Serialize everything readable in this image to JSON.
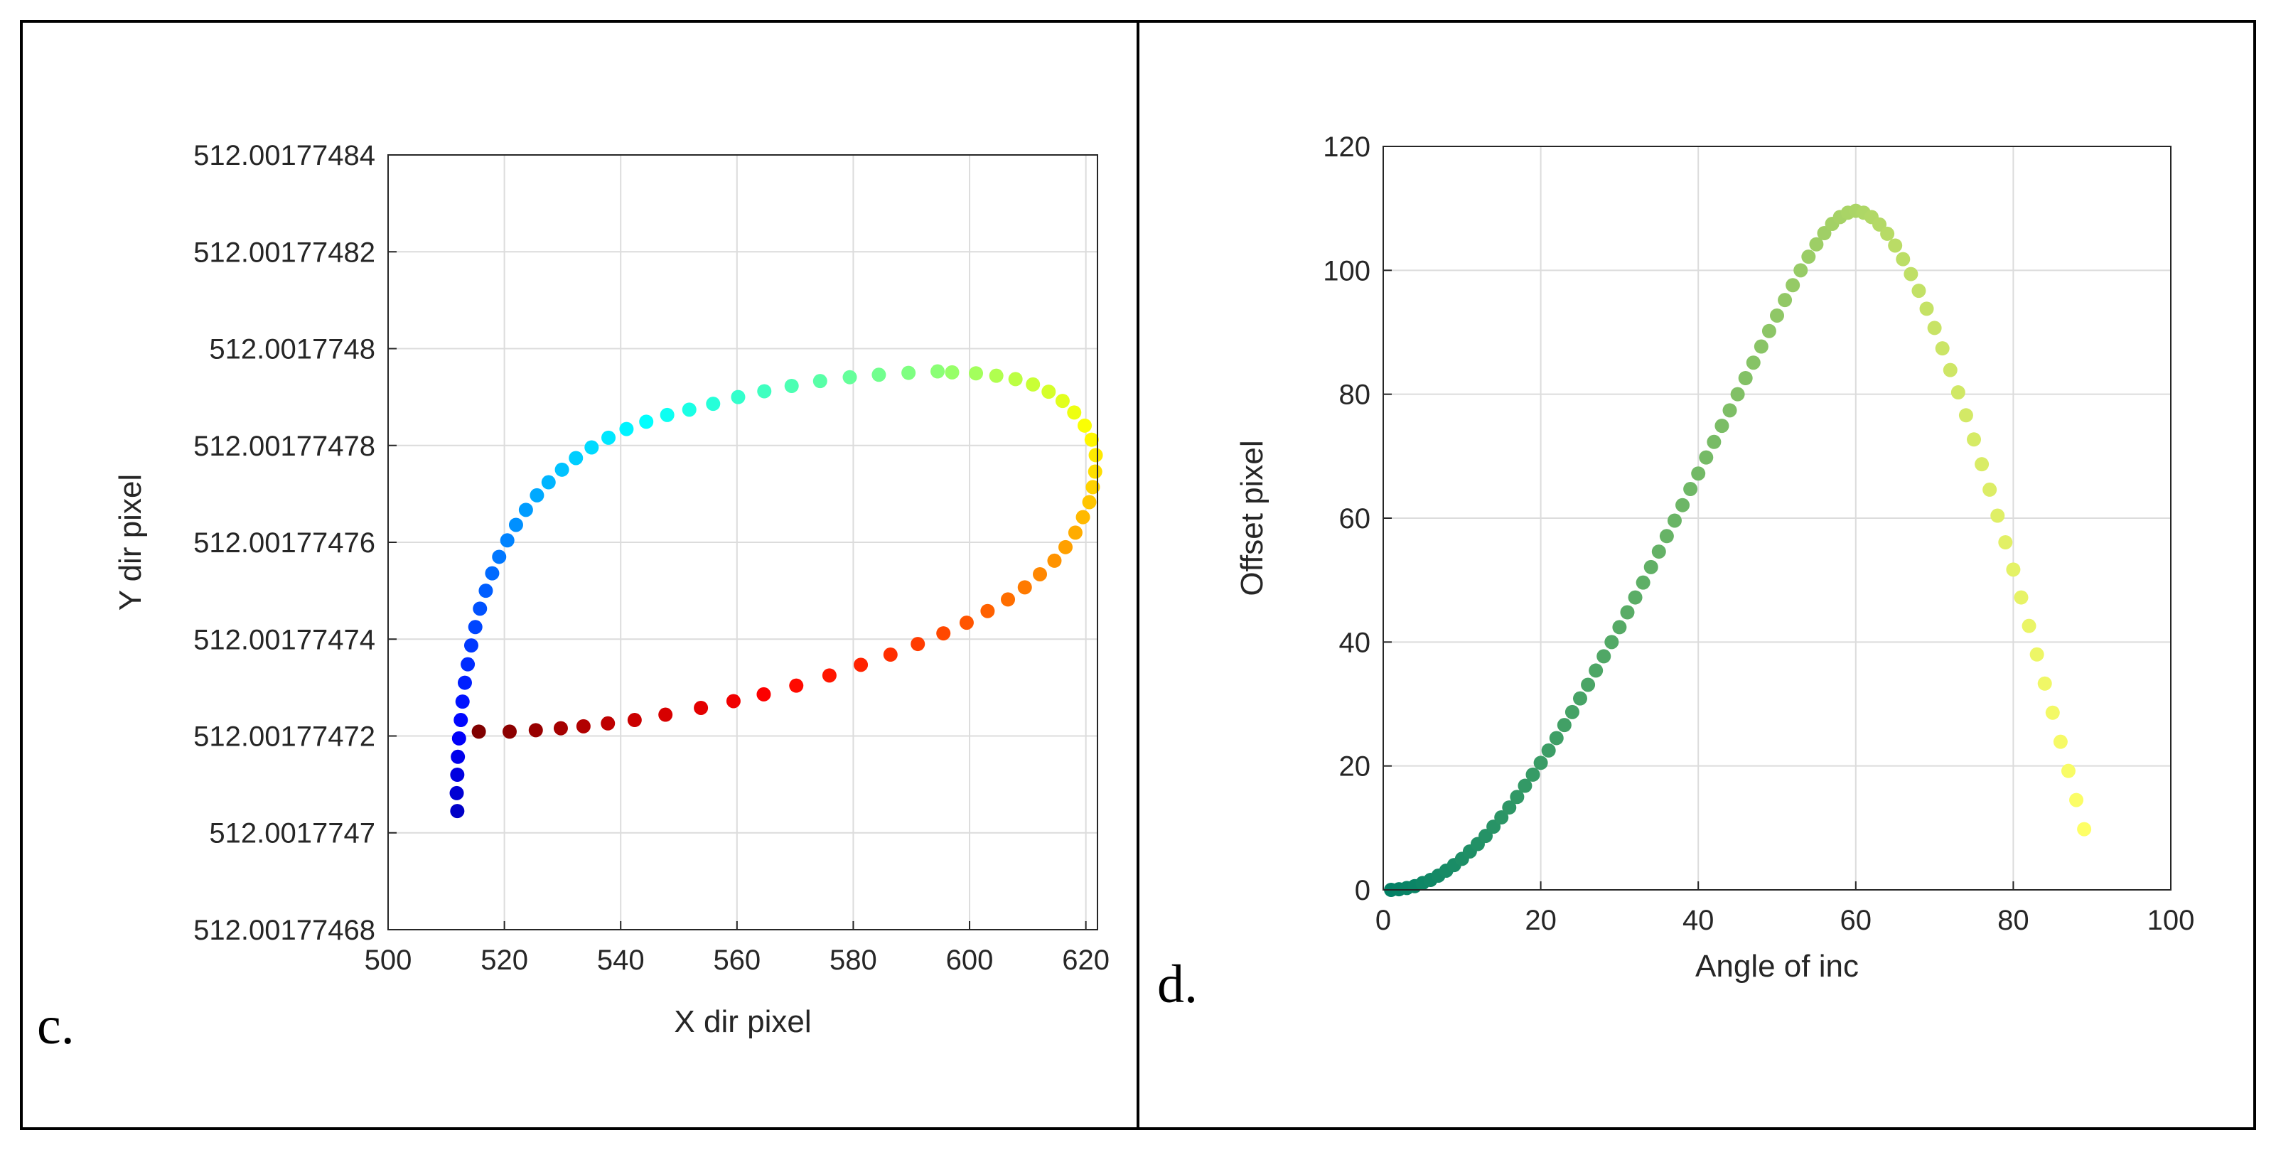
{
  "panels": {
    "c": {
      "letter": "c."
    },
    "d": {
      "letter": "d."
    }
  },
  "chart_data": [
    {
      "id": "c",
      "type": "scatter",
      "title": "",
      "xlabel": "X dir pixel",
      "ylabel": "Y dir pixel",
      "xlim": [
        500,
        622
      ],
      "ylim": [
        512.00177468,
        512.00177484
      ],
      "xticks": [
        500,
        520,
        540,
        560,
        580,
        600,
        620
      ],
      "yticks": [
        512.00177468,
        512.0017747,
        512.00177472,
        512.00177474,
        512.00177476,
        512.00177478,
        512.0017748,
        512.00177482,
        512.00177484
      ],
      "ytick_labels": [
        "512.0017746​8",
        "512.0017747",
        "512.00177472",
        "512.00177474",
        "512.00177476",
        "512.00177478",
        "512.0017748",
        "512.00177482",
        "512.00177484"
      ],
      "colormap": "jet",
      "grid": true,
      "points": {
        "x": [
          511.9,
          511.8,
          511.9,
          512.0,
          512.2,
          512.5,
          512.8,
          513.2,
          513.7,
          514.3,
          515.0,
          515.8,
          516.8,
          517.9,
          519.1,
          520.5,
          522.0,
          523.7,
          525.6,
          527.6,
          529.9,
          532.3,
          535.0,
          537.9,
          541.0,
          544.4,
          548.0,
          551.8,
          555.9,
          560.2,
          564.7,
          569.4,
          574.3,
          579.4,
          584.4,
          589.5,
          594.5,
          597.0,
          601.1,
          604.6,
          607.9,
          610.9,
          613.6,
          616.0,
          618.0,
          619.8,
          621.0,
          621.7,
          621.6,
          621.2,
          620.6,
          619.5,
          618.2,
          616.5,
          614.6,
          612.1,
          609.5,
          606.6,
          603.1,
          599.5,
          595.5,
          591.1,
          586.4,
          581.3,
          575.9,
          570.2,
          564.6,
          559.4,
          553.8,
          547.7,
          542.4,
          537.8,
          533.6,
          529.7,
          525.4,
          520.9,
          515.6
        ],
        "y": [
          512.0017747045,
          512.0017747082,
          512.001774712,
          512.0017747157,
          512.0017747195,
          512.0017747233,
          512.0017747271,
          512.001774731,
          512.0017747348,
          512.0017747387,
          512.0017747425,
          512.0017747463,
          512.00177475,
          512.0017747536,
          512.001774757,
          512.0017747604,
          512.0017747636,
          512.0017747667,
          512.0017747697,
          512.0017747724,
          512.001774775,
          512.0017747774,
          512.0017747796,
          512.0017747816,
          512.0017747834,
          512.0017747849,
          512.0017747863,
          512.0017747874,
          512.0017747886,
          512.00177479,
          512.0017747912,
          512.0017747923,
          512.0017747933,
          512.0017747941,
          512.0017747946,
          512.001774795,
          512.0017747953,
          512.0017747951,
          512.0017747949,
          512.0017747944,
          512.0017747937,
          512.0017747926,
          512.0017747911,
          512.0017747892,
          512.0017747868,
          512.0017747841,
          512.0017747812,
          512.001774778,
          512.0017747746,
          512.0017747714,
          512.0017747683,
          512.0017747652,
          512.001774762,
          512.001774759,
          512.0017747562,
          512.0017747534,
          512.0017747507,
          512.0017747482,
          512.0017747458,
          512.0017747434,
          512.0017747412,
          512.001774739,
          512.0017747368,
          512.0017747347,
          512.0017747325,
          512.0017747304,
          512.0017747286,
          512.0017747272,
          512.0017747258,
          512.0017747244,
          512.0017747233,
          512.0017747226,
          512.001774722,
          512.0017747216,
          512.0017747212,
          512.0017747209,
          512.0017747209
        ]
      }
    },
    {
      "id": "d",
      "type": "scatter",
      "title": "",
      "xlabel": "Angle of inc",
      "ylabel": "Offset pixel",
      "xlim": [
        0,
        100
      ],
      "ylim": [
        0,
        120
      ],
      "xticks": [
        0,
        20,
        40,
        60,
        80,
        100
      ],
      "yticks": [
        0,
        20,
        40,
        60,
        80,
        100,
        120
      ],
      "colormap": "summer",
      "grid": true,
      "points": {
        "x": [
          1,
          2,
          3,
          4,
          5,
          6,
          7,
          8,
          9,
          10,
          11,
          12,
          13,
          14,
          15,
          16,
          17,
          18,
          19,
          20,
          21,
          22,
          23,
          24,
          25,
          26,
          27,
          28,
          29,
          30,
          31,
          32,
          33,
          34,
          35,
          36,
          37,
          38,
          39,
          40,
          41,
          42,
          43,
          44,
          45,
          46,
          47,
          48,
          49,
          50,
          51,
          52,
          53,
          54,
          55,
          56,
          57,
          58,
          59,
          60,
          61,
          62,
          63,
          64,
          65,
          66,
          67,
          68,
          69,
          70,
          71,
          72,
          73,
          74,
          75,
          76,
          77,
          78,
          79,
          80,
          81,
          82,
          83,
          84,
          85,
          86,
          87,
          88,
          89
        ],
        "y": [
          0.0,
          0.1,
          0.3,
          0.6,
          1.1,
          1.6,
          2.3,
          3.1,
          4.0,
          5.0,
          6.2,
          7.4,
          8.7,
          10.2,
          11.7,
          13.3,
          15.0,
          16.8,
          18.6,
          20.5,
          22.5,
          24.5,
          26.6,
          28.7,
          30.9,
          33.1,
          35.4,
          37.7,
          40.0,
          42.4,
          44.8,
          47.2,
          49.6,
          52.1,
          54.6,
          57.1,
          59.6,
          62.1,
          64.7,
          67.2,
          69.8,
          72.3,
          74.9,
          77.4,
          80.0,
          82.6,
          85.1,
          87.7,
          90.2,
          92.7,
          95.2,
          97.6,
          100.0,
          102.2,
          104.2,
          106.0,
          107.5,
          108.6,
          109.3,
          109.6,
          109.3,
          108.6,
          107.4,
          105.9,
          104.0,
          101.8,
          99.4,
          96.7,
          93.8,
          90.7,
          87.4,
          83.9,
          80.3,
          76.6,
          72.7,
          68.7,
          64.6,
          60.4,
          56.1,
          51.7,
          47.2,
          42.6,
          38.0,
          33.3,
          28.6,
          23.9,
          19.2,
          14.5,
          9.8
        ]
      }
    }
  ]
}
